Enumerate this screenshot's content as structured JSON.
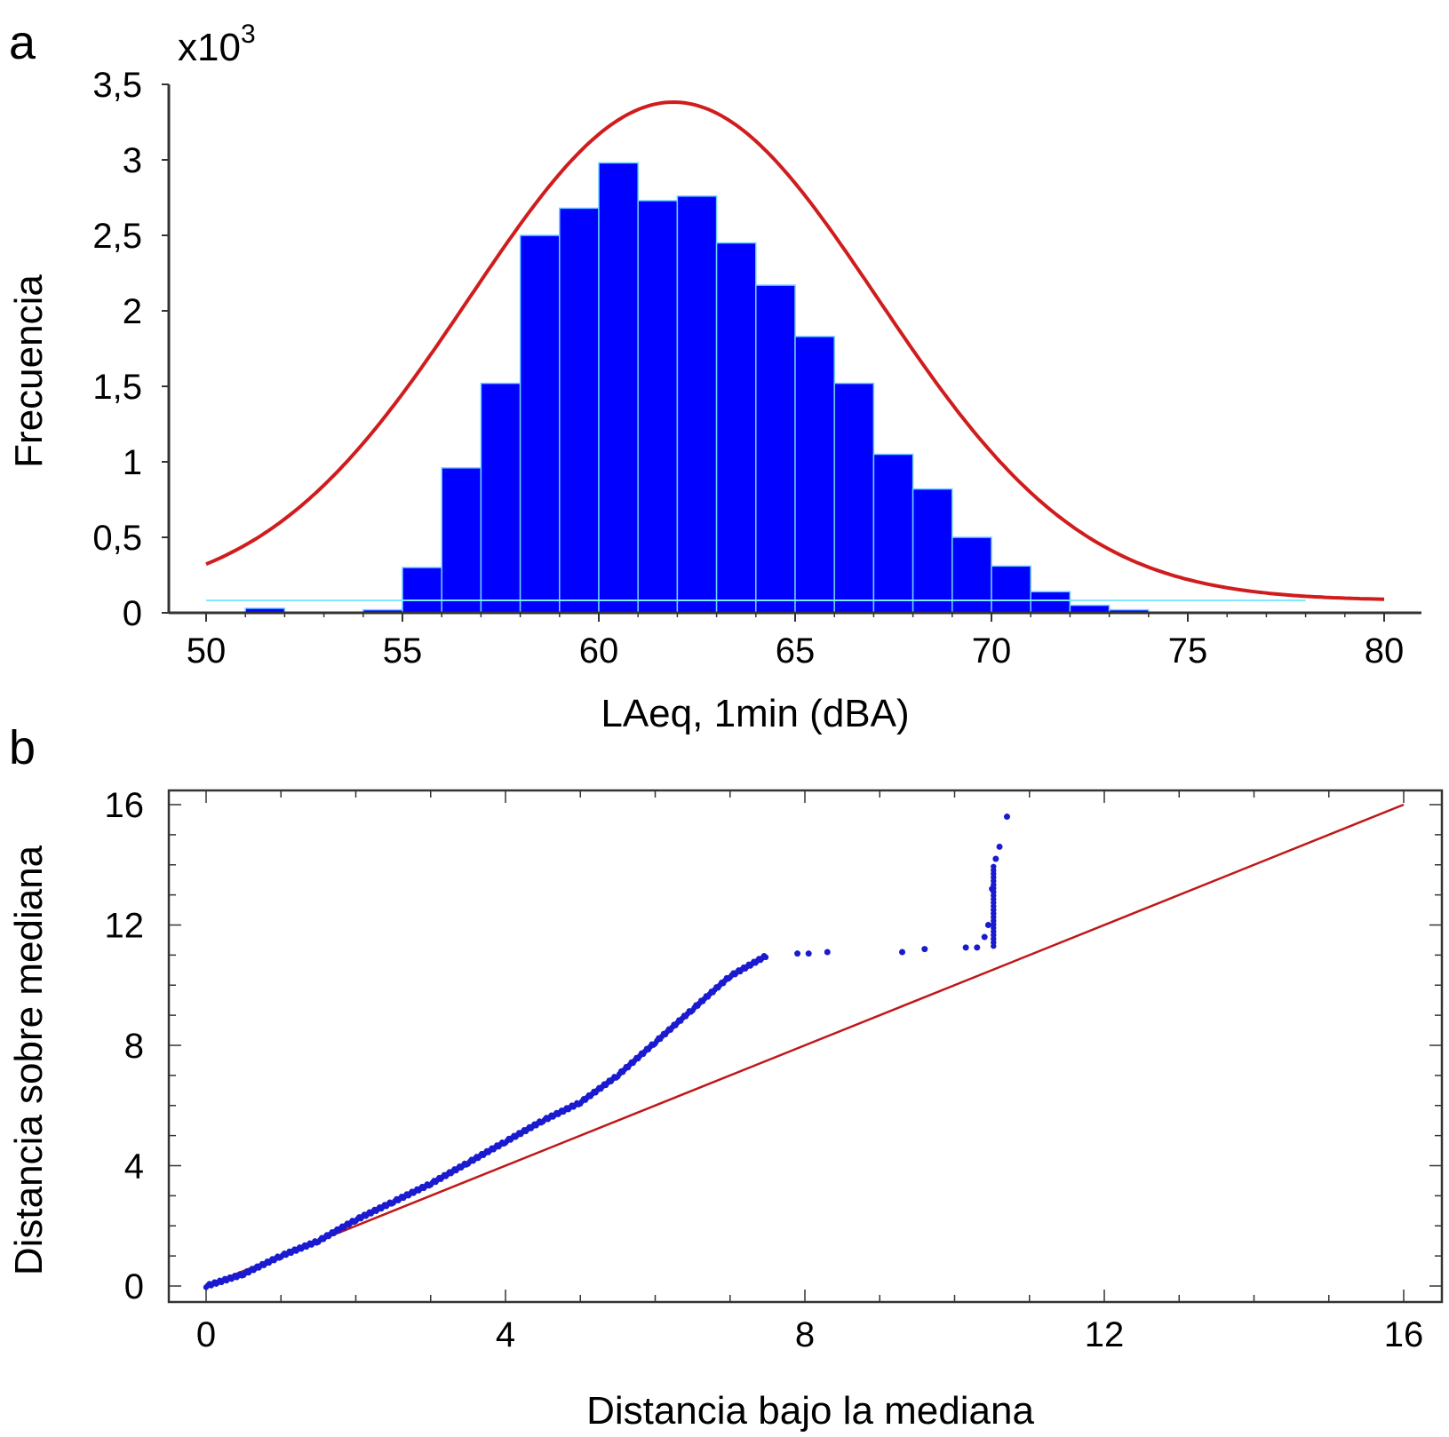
{
  "chart_data": [
    {
      "panel_label": "a",
      "type": "bar",
      "subtype": "histogram with fitted normal curve",
      "xlabel": "LAeq, 1min (dBA)",
      "ylabel": "Frecuencia",
      "y_multiplier_label": "x10",
      "y_multiplier_exp": "3",
      "xlim": [
        50,
        80
      ],
      "ylim": [
        0,
        3.5
      ],
      "x_ticks": [
        "50",
        "55",
        "60",
        "65",
        "70",
        "75",
        "80"
      ],
      "y_ticks": [
        "0",
        "0,5",
        "1",
        "1,5",
        "2",
        "2,5",
        "3",
        "3,5"
      ],
      "bins": [
        {
          "x0": 51,
          "x1": 52,
          "value": 0.03
        },
        {
          "x0": 54,
          "x1": 55,
          "value": 0.02
        },
        {
          "x0": 55,
          "x1": 56,
          "value": 0.3
        },
        {
          "x0": 56,
          "x1": 57,
          "value": 0.96
        },
        {
          "x0": 57,
          "x1": 58,
          "value": 1.52
        },
        {
          "x0": 58,
          "x1": 59,
          "value": 2.5
        },
        {
          "x0": 59,
          "x1": 60,
          "value": 2.68
        },
        {
          "x0": 60,
          "x1": 61,
          "value": 2.98
        },
        {
          "x0": 61,
          "x1": 62,
          "value": 2.73
        },
        {
          "x0": 62,
          "x1": 63,
          "value": 2.76
        },
        {
          "x0": 63,
          "x1": 64,
          "value": 2.45
        },
        {
          "x0": 64,
          "x1": 65,
          "value": 2.17
        },
        {
          "x0": 65,
          "x1": 66,
          "value": 1.83
        },
        {
          "x0": 66,
          "x1": 67,
          "value": 1.52
        },
        {
          "x0": 67,
          "x1": 68,
          "value": 1.05
        },
        {
          "x0": 68,
          "x1": 69,
          "value": 0.82
        },
        {
          "x0": 69,
          "x1": 70,
          "value": 0.5
        },
        {
          "x0": 70,
          "x1": 71,
          "value": 0.31
        },
        {
          "x0": 71,
          "x1": 72,
          "value": 0.14
        },
        {
          "x0": 72,
          "x1": 73,
          "value": 0.05
        },
        {
          "x0": 73,
          "x1": 74,
          "value": 0.02
        }
      ],
      "fit_curve": {
        "type": "normal",
        "mean": 61.9,
        "sd": 5.2,
        "peak": 3.3
      },
      "colors": {
        "bars": "#0000ff",
        "bar_edge": "#6fd0ff",
        "curve": "#d01c1c",
        "baseline": "#7fe8ff"
      }
    },
    {
      "panel_label": "b",
      "type": "scatter",
      "subtype": "symmetry plot with reference line y = x",
      "xlabel": "Distancia bajo la mediana",
      "ylabel": "Distancia sobre mediana",
      "xlim": [
        0,
        16
      ],
      "ylim": [
        0,
        16
      ],
      "x_ticks": [
        "0",
        "4",
        "8",
        "12",
        "16"
      ],
      "y_ticks": [
        "0",
        "4",
        "8",
        "12",
        "16"
      ],
      "reference_line": {
        "from": [
          0,
          0
        ],
        "to": [
          16,
          16
        ]
      },
      "curve_points": [
        [
          0,
          0
        ],
        [
          0.5,
          0.4
        ],
        [
          1,
          1.0
        ],
        [
          1.5,
          1.5
        ],
        [
          2,
          2.2
        ],
        [
          2.5,
          2.8
        ],
        [
          3,
          3.4
        ],
        [
          3.5,
          4.1
        ],
        [
          4,
          4.8
        ],
        [
          4.5,
          5.5
        ],
        [
          5,
          6.1
        ],
        [
          5.5,
          7.0
        ],
        [
          6,
          8.1
        ],
        [
          6.5,
          9.2
        ],
        [
          7,
          10.3
        ],
        [
          7.5,
          11.0
        ]
      ],
      "isolated_points": [
        [
          7.9,
          11.05
        ],
        [
          8.05,
          11.05
        ],
        [
          8.3,
          11.1
        ],
        [
          9.3,
          11.1
        ],
        [
          9.6,
          11.2
        ],
        [
          10.15,
          11.25
        ],
        [
          10.3,
          11.25
        ],
        [
          10.4,
          11.6
        ],
        [
          10.45,
          12.0
        ],
        [
          10.5,
          13.2
        ],
        [
          10.55,
          14.2
        ],
        [
          10.6,
          14.6
        ],
        [
          10.7,
          15.6
        ]
      ],
      "colors": {
        "points": "#1a1ad0",
        "reference_line": "#c01818"
      }
    }
  ]
}
